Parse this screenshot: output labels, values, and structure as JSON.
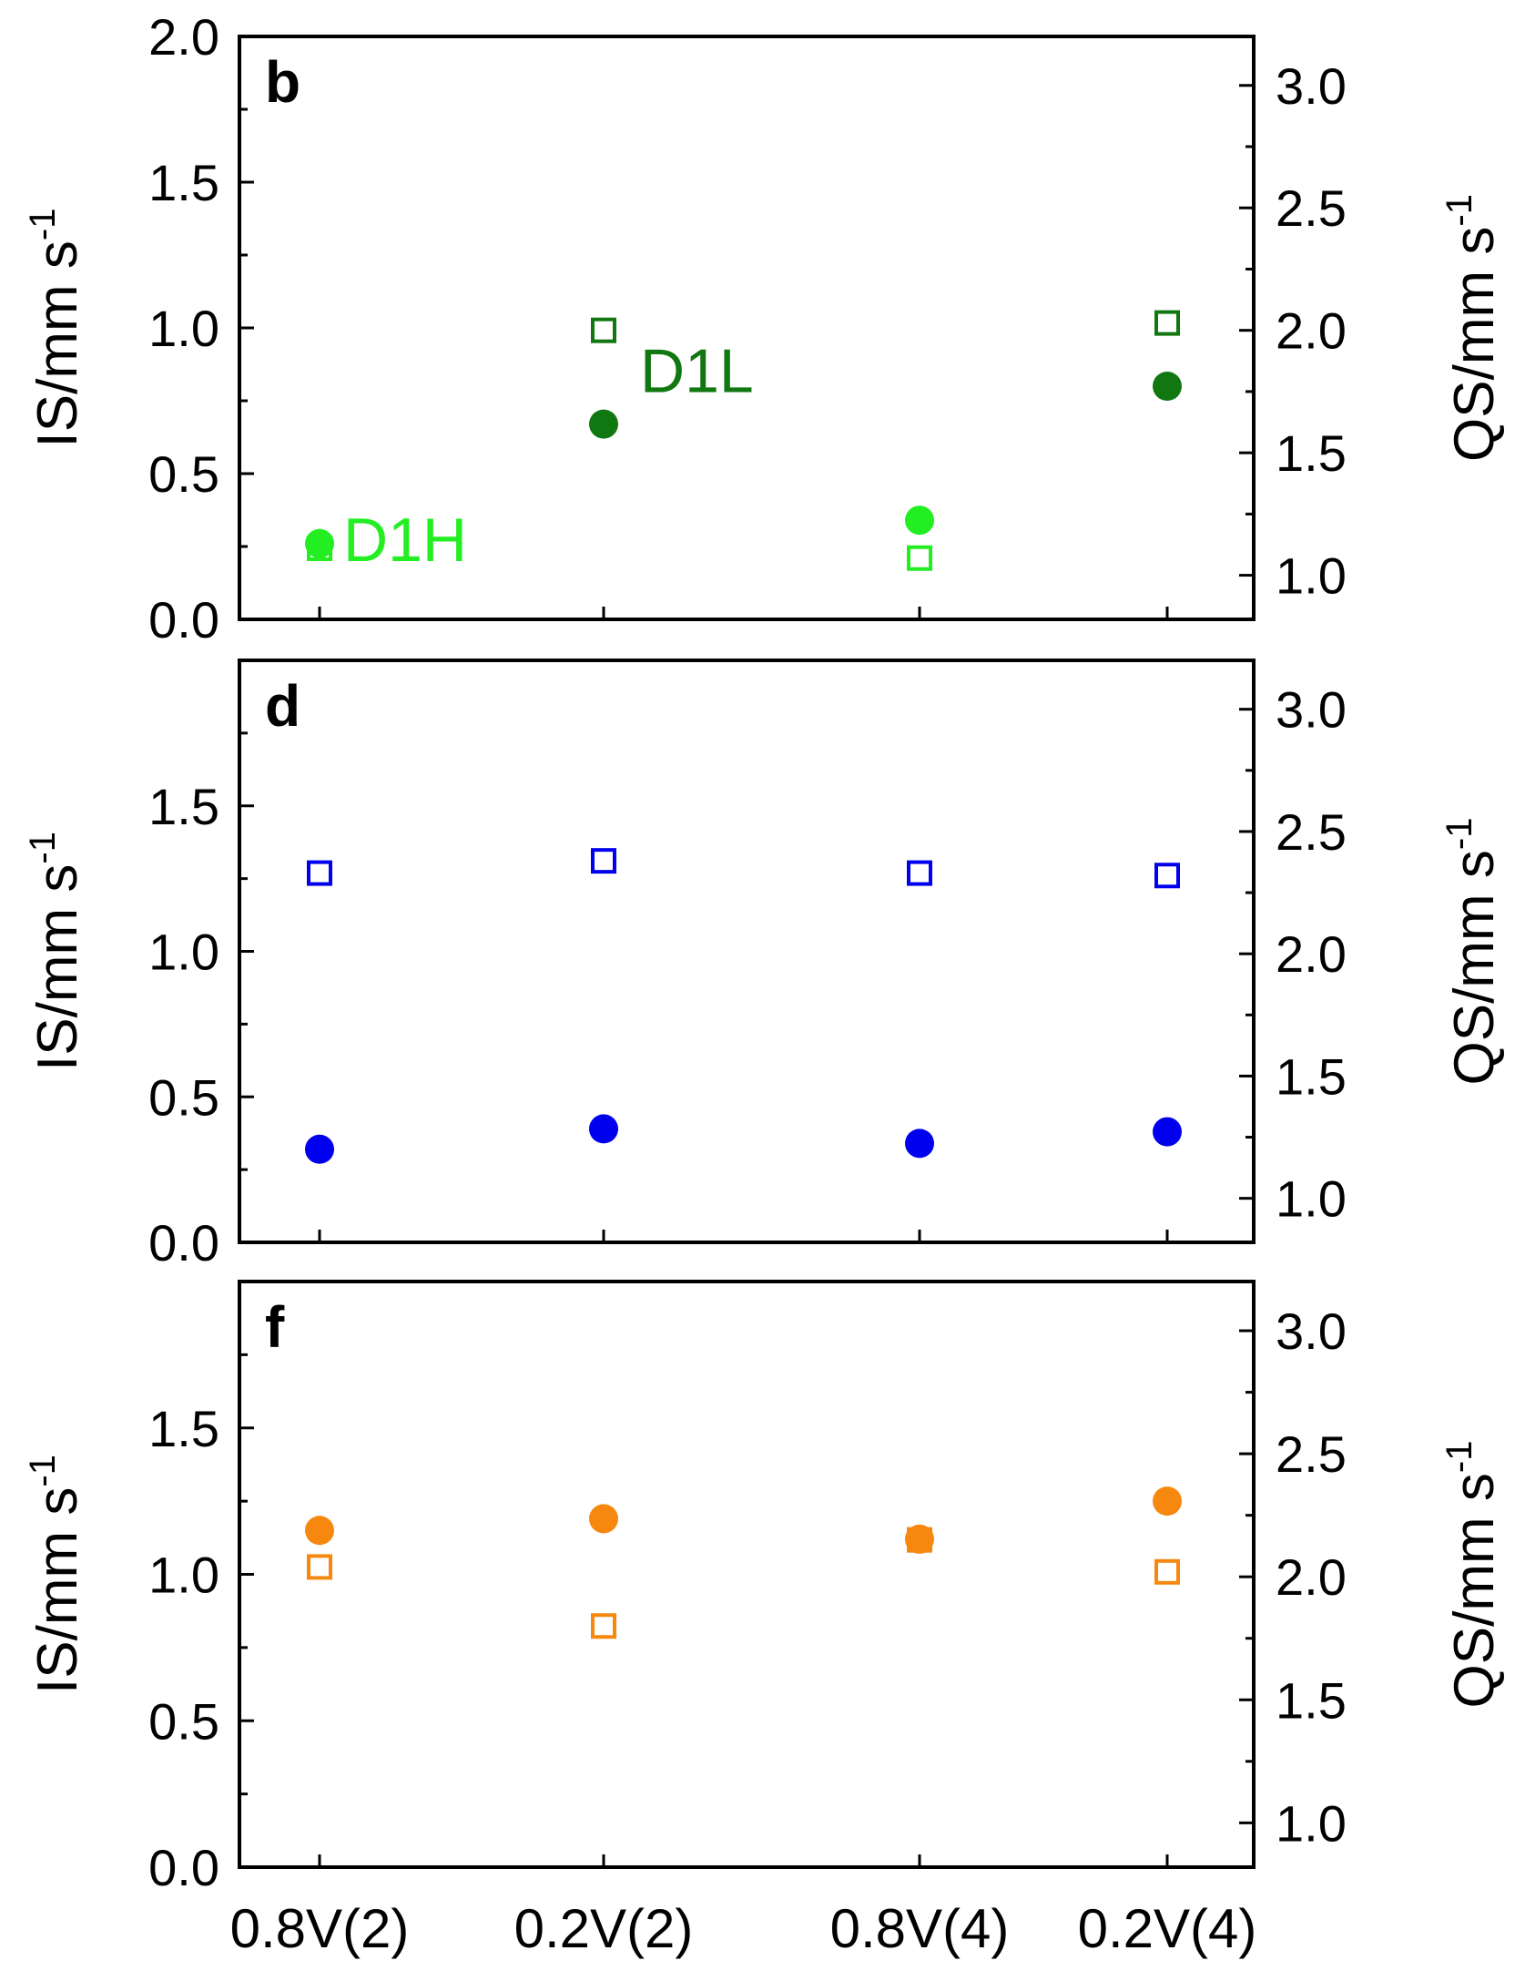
{
  "figure": {
    "x_categories": [
      "0.8V(2)",
      "0.2V(2)",
      "0.8V(4)",
      "0.2V(4)"
    ]
  },
  "chart_data": [
    {
      "type": "scatter",
      "panel_label": "b",
      "ylabel_left": "IS/mm s",
      "ylabel_left_sup": "-1",
      "ylabel_right": "QS/mm s",
      "ylabel_right_sup": "-1",
      "ylim_left": [
        0,
        2.0
      ],
      "ylim_right": [
        0.82,
        3.2
      ],
      "yticks_left": [
        "0.0",
        "0.5",
        "1.0",
        "1.5",
        "2.0"
      ],
      "yticks_right": [
        "1.0",
        "1.5",
        "2.0",
        "2.5",
        "3.0"
      ],
      "annotations": [
        {
          "text": "D1H",
          "category": 0,
          "y": 0.2,
          "dx": 26,
          "color": "#22ee22"
        },
        {
          "text": "D1L",
          "category": 1,
          "y": 0.78,
          "dx": 40,
          "color": "#117711"
        }
      ],
      "series": [
        {
          "axis": "left",
          "marker": "circle",
          "values": [
            0.26,
            null,
            0.34,
            null
          ],
          "color": "#22ee22"
        },
        {
          "axis": "right",
          "marker": "square",
          "values": [
            1.11,
            null,
            1.07,
            null
          ],
          "color": "#22ee22"
        },
        {
          "axis": "left",
          "marker": "circle",
          "values": [
            null,
            0.67,
            null,
            0.8
          ],
          "color": "#117711"
        },
        {
          "axis": "right",
          "marker": "square",
          "values": [
            null,
            2.0,
            null,
            2.03
          ],
          "color": "#117711"
        }
      ]
    },
    {
      "type": "scatter",
      "panel_label": "d",
      "ylabel_left": "IS/mm s",
      "ylabel_left_sup": "-1",
      "ylabel_right": "QS/mm s",
      "ylabel_right_sup": "-1",
      "ylim_left": [
        0,
        2.0
      ],
      "ylim_right": [
        0.82,
        3.2
      ],
      "yticks_left": [
        "0.0",
        "0.5",
        "1.0",
        "1.5"
      ],
      "yticks_right": [
        "1.0",
        "1.5",
        "2.0",
        "2.5",
        "3.0"
      ],
      "annotations": [],
      "series": [
        {
          "axis": "left",
          "marker": "circle",
          "values": [
            0.32,
            0.39,
            0.34,
            0.38
          ],
          "color": "#0000ee"
        },
        {
          "axis": "right",
          "marker": "square",
          "values": [
            2.33,
            2.38,
            2.33,
            2.32
          ],
          "color": "#0000ee"
        }
      ]
    },
    {
      "type": "scatter",
      "panel_label": "f",
      "ylabel_left": "IS/mm s",
      "ylabel_left_sup": "-1",
      "ylabel_right": "QS/mm s",
      "ylabel_right_sup": "-1",
      "ylim_left": [
        0,
        2.0
      ],
      "ylim_right": [
        0.82,
        3.2
      ],
      "yticks_left": [
        "0.0",
        "0.5",
        "1.0",
        "1.5"
      ],
      "yticks_right": [
        "1.0",
        "1.5",
        "2.0",
        "2.5",
        "3.0"
      ],
      "annotations": [],
      "series": [
        {
          "axis": "left",
          "marker": "circle",
          "values": [
            1.15,
            1.19,
            1.12,
            1.25
          ],
          "color": "#f7880f"
        },
        {
          "axis": "right",
          "marker": "square",
          "values": [
            2.04,
            1.8,
            2.15,
            2.02
          ],
          "color": "#f7880f"
        }
      ]
    }
  ]
}
